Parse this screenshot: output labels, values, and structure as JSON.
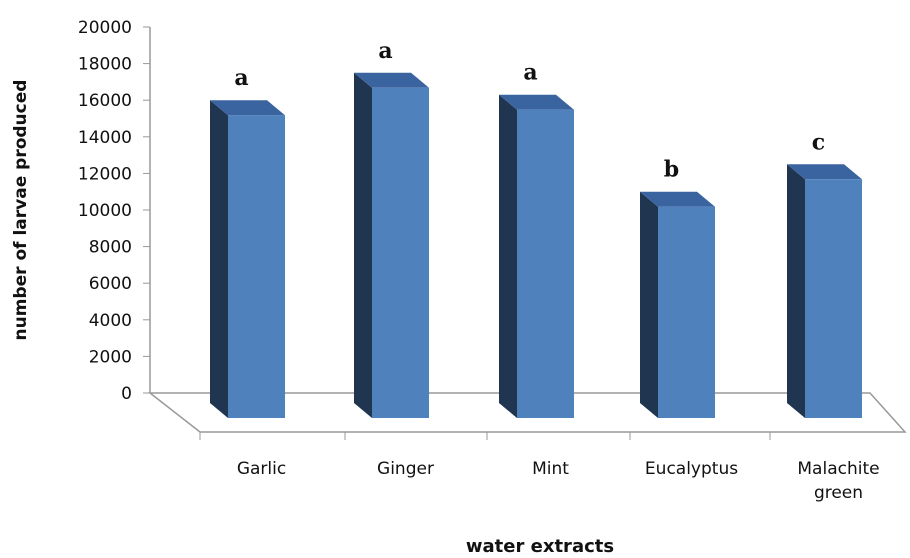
{
  "chart_data": {
    "type": "bar",
    "x_label": "water extracts",
    "y_label": "number of larvae produced",
    "categories": [
      "Garlic",
      "Ginger",
      "Mint",
      "Eucalyptus",
      "Malachite green"
    ],
    "values": [
      16000,
      17500,
      16300,
      11000,
      12500
    ],
    "annotations": [
      "a",
      "a",
      "a",
      "b",
      "c"
    ],
    "color": "#4f81bd",
    "ylim": [
      0,
      20000
    ],
    "yticks": [
      0,
      2000,
      4000,
      6000,
      8000,
      10000,
      12000,
      14000,
      16000,
      18000,
      20000
    ]
  }
}
